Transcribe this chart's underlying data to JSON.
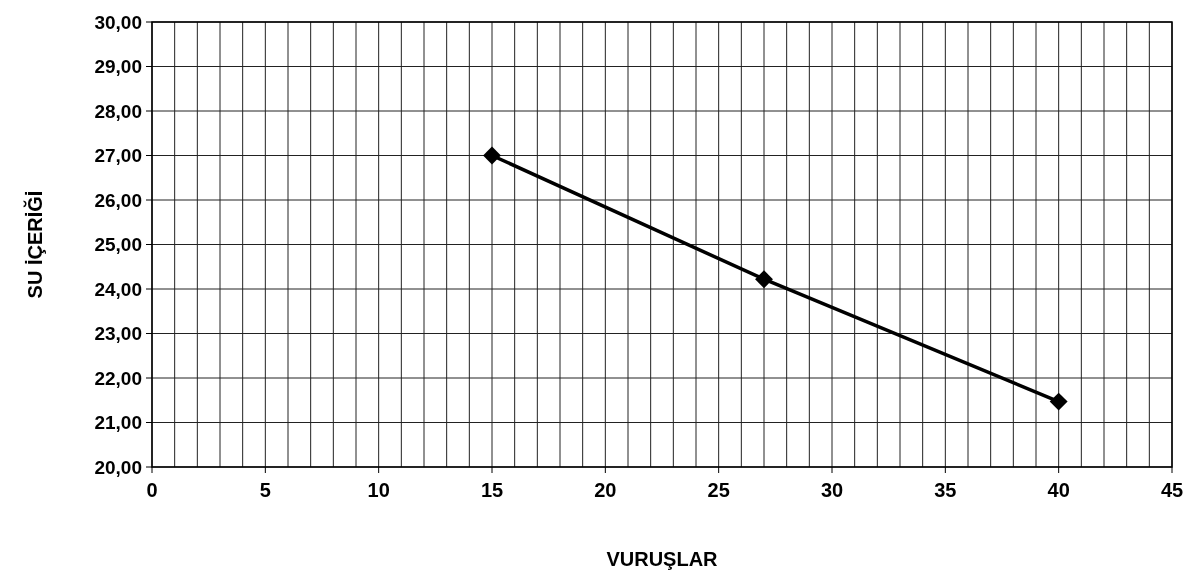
{
  "chart_data": {
    "type": "line",
    "xlabel": "VURUŞLAR",
    "ylabel": "SU İÇERİĞİ",
    "x": [
      15,
      27,
      40
    ],
    "series": [
      {
        "color": "#000000",
        "values": [
          27.0,
          24.22,
          21.47
        ]
      }
    ],
    "marker": "diamond",
    "line_style": "solid",
    "grid": true,
    "xlim": [
      0,
      45
    ],
    "xticks": [
      0,
      {
        "value": 1,
        "label": null
      },
      {
        "value": 2,
        "label": null
      },
      {
        "value": 3,
        "label": null
      },
      {
        "value": 4,
        "label": null
      },
      5,
      {
        "value": 6,
        "label": null
      },
      {
        "value": 7,
        "label": null
      },
      {
        "value": 8,
        "label": null
      },
      {
        "value": 9,
        "label": null
      },
      10,
      {
        "value": 11,
        "label": null
      },
      {
        "value": 12,
        "label": null
      },
      {
        "value": 13,
        "label": null
      },
      {
        "value": 14,
        "label": null
      },
      15,
      {
        "value": 16,
        "label": null
      },
      {
        "value": 17,
        "label": null
      },
      {
        "value": 18,
        "label": null
      },
      {
        "value": 19,
        "label": null
      },
      20,
      {
        "value": 21,
        "label": null
      },
      {
        "value": 22,
        "label": null
      },
      {
        "value": 23,
        "label": null
      },
      {
        "value": 24,
        "label": null
      },
      25,
      {
        "value": 26,
        "label": null
      },
      {
        "value": 27,
        "label": null
      },
      {
        "value": 28,
        "label": null
      },
      {
        "value": 29,
        "label": null
      },
      30,
      {
        "value": 31,
        "label": null
      },
      {
        "value": 32,
        "label": null
      },
      {
        "value": 33,
        "label": null
      },
      {
        "value": 34,
        "label": null
      },
      35,
      {
        "value": 36,
        "label": null
      },
      {
        "value": 37,
        "label": null
      },
      {
        "value": 38,
        "label": null
      },
      {
        "value": 39,
        "label": null
      },
      40,
      {
        "value": 41,
        "label": null
      },
      {
        "value": 42,
        "label": null
      },
      {
        "value": 43,
        "label": null
      },
      {
        "value": 44,
        "label": null
      },
      45
    ],
    "ylim": [
      20,
      30
    ],
    "yticks": [
      {
        "value": 20,
        "label": "20,00"
      },
      {
        "value": 21,
        "label": "21,00"
      },
      {
        "value": 22,
        "label": "22,00"
      },
      {
        "value": 23,
        "label": "23,00"
      },
      {
        "value": 24,
        "label": "24,00"
      },
      {
        "value": 25,
        "label": "25,00"
      },
      {
        "value": 26,
        "label": "26,00"
      },
      {
        "value": 27,
        "label": "27,00"
      },
      {
        "value": 28,
        "label": "28,00"
      },
      {
        "value": 29,
        "label": "29,00"
      },
      {
        "value": 30,
        "label": "30,00"
      }
    ]
  }
}
